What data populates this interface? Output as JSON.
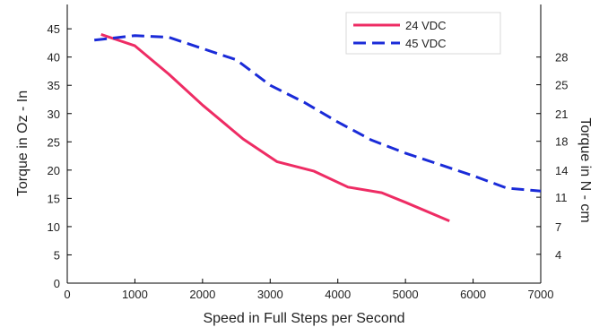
{
  "chart_data": {
    "type": "line",
    "xlabel": "Speed in Full Steps per Second",
    "ylabel": "Torque in Oz - In",
    "y2label": "Torque in N - cm",
    "xlim": [
      0,
      7000
    ],
    "ylim": [
      0,
      50
    ],
    "x_ticks": [
      "0",
      "1000",
      "2000",
      "3000",
      "4000",
      "5000",
      "6000",
      "7000"
    ],
    "y_ticks": [
      "0",
      "5",
      "10",
      "15",
      "20",
      "25",
      "30",
      "35",
      "40",
      "45"
    ],
    "y2_ticks": [
      "4",
      "7",
      "11",
      "14",
      "18",
      "21",
      "25",
      "28"
    ],
    "y2_tick_positions": [
      5.1,
      10,
      15.2,
      20,
      25.1,
      30,
      35.1,
      40
    ],
    "grid": false,
    "legend_position": "top-right",
    "series": [
      {
        "name": "24 VDC",
        "color": "#ee2c64",
        "style": "solid",
        "x": [
          500,
          1000,
          1500,
          2000,
          2600,
          3100,
          3650,
          4150,
          4650,
          5000,
          5650
        ],
        "y": [
          44,
          42,
          37,
          31.5,
          25.5,
          21.5,
          19.8,
          17,
          16,
          14.3,
          11
        ]
      },
      {
        "name": "45 VDC",
        "color": "#1a2bd8",
        "style": "dashed",
        "x": [
          400,
          1000,
          1500,
          2000,
          2500,
          3000,
          3500,
          4000,
          4500,
          5000,
          5500,
          6000,
          6500,
          7000
        ],
        "y": [
          43,
          43.8,
          43.5,
          41.5,
          39.5,
          35,
          32,
          28.5,
          25.3,
          23,
          21,
          19,
          16.8,
          16.3
        ]
      }
    ]
  }
}
